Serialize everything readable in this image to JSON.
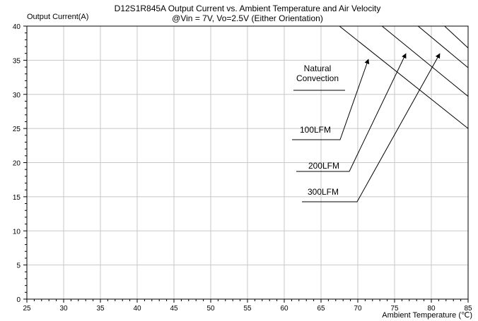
{
  "chart_data": {
    "type": "line",
    "title": "D12S1R845A Output Current vs. Ambient Temperature and Air Velocity",
    "subtitle": "@Vin = 7V, Vo=2.5V (Either Orientation)",
    "xlabel": "Ambient Temperature (℃)",
    "ylabel": "Output Current(A)",
    "xlim": [
      25,
      85
    ],
    "ylim": [
      0,
      40
    ],
    "xticks": [
      25,
      30,
      35,
      40,
      45,
      50,
      55,
      60,
      65,
      70,
      75,
      80,
      85
    ],
    "yticks": [
      0,
      5,
      10,
      15,
      20,
      25,
      30,
      35,
      40
    ],
    "grid": true,
    "series": [
      {
        "name": "Natural Convection",
        "x": [
          25,
          67.5,
          85
        ],
        "y": [
          40,
          40,
          25
        ]
      },
      {
        "name": "100LFM",
        "x": [
          25,
          73.3,
          85
        ],
        "y": [
          40,
          40,
          29.7
        ]
      },
      {
        "name": "200LFM",
        "x": [
          25,
          78.2,
          85
        ],
        "y": [
          40,
          40,
          33.9
        ]
      },
      {
        "name": "300LFM",
        "x": [
          25,
          81.8,
          85
        ],
        "y": [
          40,
          40,
          36.8
        ]
      }
    ],
    "annotations": [
      {
        "lines": [
          "Natural",
          "Convection"
        ],
        "arrow": false
      },
      {
        "lines": [
          "100LFM"
        ],
        "arrow": true
      },
      {
        "lines": [
          "200LFM"
        ],
        "arrow": true
      },
      {
        "lines": [
          "300LFM"
        ],
        "arrow": true
      }
    ]
  }
}
